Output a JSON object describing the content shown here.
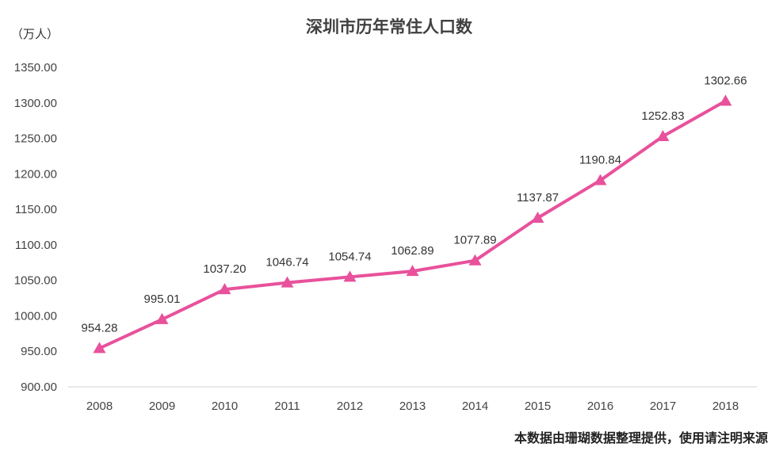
{
  "chart_data": {
    "type": "line",
    "title": "深圳市历年常住人口数",
    "unit_label": "（万人）",
    "source_note": "本数据由珊瑚数据整理提供，使用请注明来源",
    "categories": [
      "2008",
      "2009",
      "2010",
      "2011",
      "2012",
      "2013",
      "2014",
      "2015",
      "2016",
      "2017",
      "2018"
    ],
    "values": [
      954.28,
      995.01,
      1037.2,
      1046.74,
      1054.74,
      1062.89,
      1077.89,
      1137.87,
      1190.84,
      1252.83,
      1302.66
    ],
    "data_labels": [
      "954.28",
      "995.01",
      "1037.20",
      "1046.74",
      "1054.74",
      "1062.89",
      "1077.89",
      "1137.87",
      "1190.84",
      "1252.83",
      "1302.66"
    ],
    "ylim": [
      900,
      1350
    ],
    "yticks": [
      "900.00",
      "950.00",
      "1000.00",
      "1050.00",
      "1100.00",
      "1150.00",
      "1200.00",
      "1250.00",
      "1300.00",
      "1350.00"
    ],
    "line_color": "#e8519b",
    "marker": "triangle",
    "grid": false,
    "legend": "none"
  }
}
